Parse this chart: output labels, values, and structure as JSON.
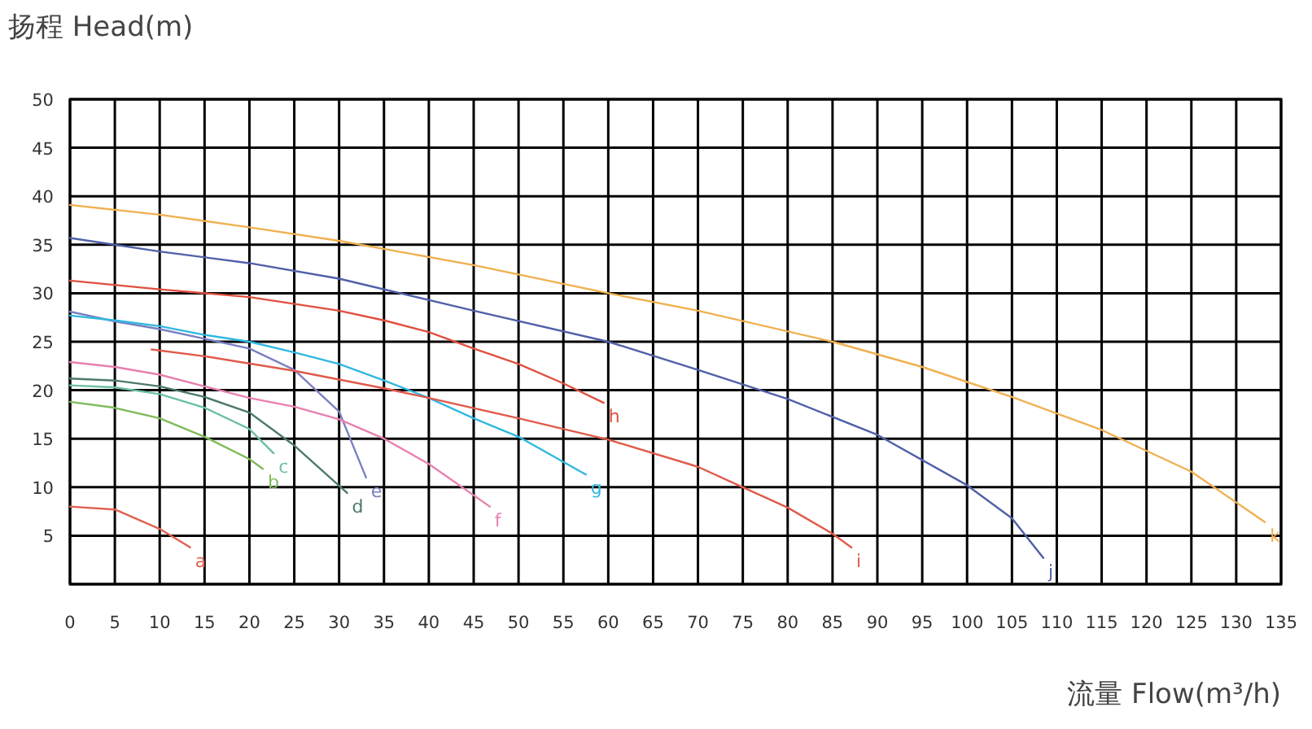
{
  "chart_data": {
    "type": "line",
    "xlabel": "流量 Flow(m³/h)",
    "ylabel": "扬程 Head(m)",
    "xlim": [
      0,
      135
    ],
    "ylim": [
      0,
      50
    ],
    "xticks": [
      0,
      5,
      10,
      15,
      20,
      25,
      30,
      35,
      40,
      45,
      50,
      55,
      60,
      65,
      70,
      75,
      80,
      85,
      90,
      95,
      100,
      105,
      110,
      115,
      120,
      125,
      130,
      135
    ],
    "yticks": [
      {
        "value": 0,
        "label": null
      },
      5,
      10,
      15,
      20,
      25,
      30,
      35,
      40,
      45,
      50
    ],
    "grid": true,
    "legend": false,
    "marker": "none",
    "line_style": "solid",
    "series": [
      {
        "name": "a",
        "color": "#e06050",
        "x": [
          0,
          5,
          10,
          13.4
        ],
        "values": [
          8,
          7.7,
          5.7,
          3.8
        ]
      },
      {
        "name": "b",
        "color": "#7fba5a",
        "x": [
          0,
          4.9,
          10,
          15,
          20,
          21.5
        ],
        "values": [
          18.8,
          18.2,
          17.1,
          15.2,
          12.9,
          11.9
        ]
      },
      {
        "name": "c",
        "color": "#6cc0a0",
        "x": [
          0,
          4.9,
          10,
          15,
          20,
          22.7
        ],
        "values": [
          20.5,
          20.3,
          19.6,
          18.2,
          16,
          13.5
        ]
      },
      {
        "name": "d",
        "color": "#4d7a6a",
        "x": [
          0,
          5,
          10,
          15,
          20,
          25,
          30.9
        ],
        "values": [
          21.2,
          21,
          20.4,
          19.3,
          17.7,
          14.3,
          9.4
        ]
      },
      {
        "name": "e",
        "color": "#7a80c0",
        "x": [
          0,
          5,
          10,
          15,
          20,
          25,
          30,
          33
        ],
        "values": [
          28.1,
          27.1,
          26.3,
          25.3,
          24.3,
          22.1,
          17.8,
          11
        ]
      },
      {
        "name": "f",
        "color": "#e880b0",
        "x": [
          0,
          5,
          10,
          15,
          20,
          25,
          30,
          35,
          40,
          46.8
        ],
        "values": [
          22.9,
          22.4,
          21.6,
          20.4,
          19.2,
          18.3,
          17,
          15,
          12.4,
          8
        ]
      },
      {
        "name": "g",
        "color": "#30b8e0",
        "x": [
          0,
          5,
          10,
          15,
          20,
          25,
          30,
          35,
          40,
          45,
          50,
          57.5
        ],
        "values": [
          27.7,
          27.2,
          26.6,
          25.7,
          25,
          23.9,
          22.7,
          21,
          19.2,
          17.1,
          15.2,
          11.3
        ]
      },
      {
        "name": "h",
        "color": "#e05040",
        "x": [
          0,
          10,
          20,
          30,
          35,
          40,
          45,
          50,
          55,
          59.5
        ],
        "values": [
          31.3,
          30.4,
          29.6,
          28.2,
          27.2,
          26,
          24.3,
          22.7,
          20.7,
          18.7
        ]
      },
      {
        "name": "i",
        "color": "#e05a4a",
        "x": [
          9.1,
          15,
          25,
          35,
          40,
          50,
          60,
          70,
          75,
          80,
          85,
          87.1
        ],
        "values": [
          24.2,
          23.5,
          22,
          20.2,
          19.2,
          17.1,
          14.9,
          12.1,
          10,
          7.9,
          5.2,
          3.8
        ]
      },
      {
        "name": "j",
        "color": "#5060a8",
        "x": [
          0,
          10,
          20,
          30,
          45,
          60,
          70,
          80,
          90,
          100,
          105,
          108.5
        ],
        "values": [
          35.7,
          34.3,
          33.1,
          31.5,
          28.2,
          25,
          22.1,
          19.1,
          15.4,
          10.2,
          6.8,
          2.7
        ]
      },
      {
        "name": "k",
        "color": "#f0b050",
        "x": [
          0,
          10,
          20,
          30,
          45,
          60,
          70,
          85,
          95,
          105,
          115,
          125,
          133.2
        ],
        "values": [
          39.1,
          38.1,
          36.8,
          35.4,
          32.9,
          30,
          28.2,
          25,
          22.4,
          19.3,
          15.9,
          11.6,
          6.4
        ]
      }
    ]
  }
}
